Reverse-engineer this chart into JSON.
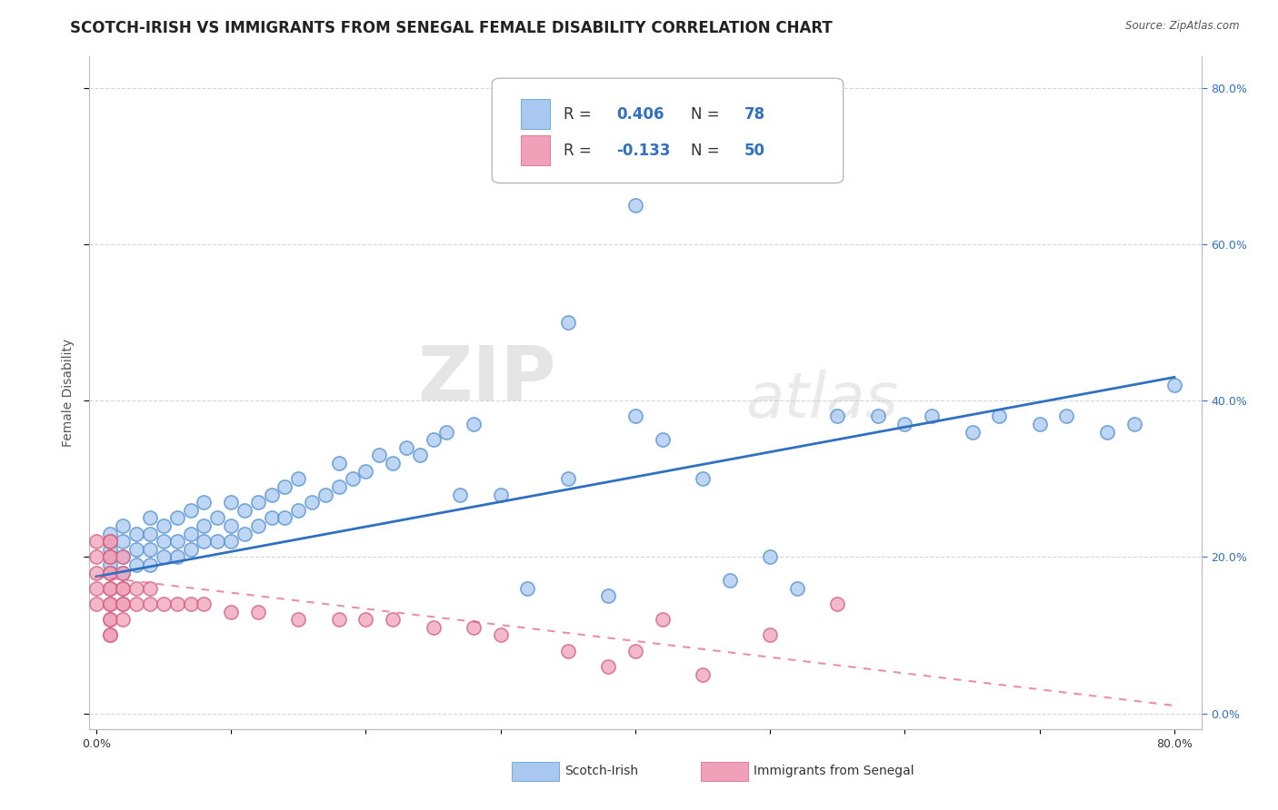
{
  "title": "SCOTCH-IRISH VS IMMIGRANTS FROM SENEGAL FEMALE DISABILITY CORRELATION CHART",
  "source": "Source: ZipAtlas.com",
  "ylabel": "Female Disability",
  "xlim": [
    -0.005,
    0.82
  ],
  "ylim": [
    -0.02,
    0.84
  ],
  "xtick_vals": [
    0.0,
    0.1,
    0.2,
    0.3,
    0.4,
    0.5,
    0.6,
    0.7,
    0.8
  ],
  "xtick_labels": [
    "0.0%",
    "",
    "",
    "",
    "",
    "",
    "",
    "",
    "80.0%"
  ],
  "ytick_vals": [
    0.0,
    0.2,
    0.4,
    0.6,
    0.8
  ],
  "ytick_labels": [
    "0.0%",
    "20.0%",
    "40.0%",
    "60.0%",
    "80.0%"
  ],
  "color_blue": "#A8C8F0",
  "color_pink": "#F0A0B8",
  "color_blue_line": "#3070C0",
  "color_pink_line": "#E06080",
  "color_blue_scatter_edge": "#5090D0",
  "color_pink_scatter_edge": "#D06080",
  "watermark_zip": "ZIP",
  "watermark_atlas": "atlas",
  "scotch_irish_x": [
    0.01,
    0.01,
    0.01,
    0.02,
    0.02,
    0.02,
    0.02,
    0.03,
    0.03,
    0.03,
    0.04,
    0.04,
    0.04,
    0.04,
    0.05,
    0.05,
    0.05,
    0.06,
    0.06,
    0.06,
    0.07,
    0.07,
    0.07,
    0.08,
    0.08,
    0.08,
    0.09,
    0.09,
    0.1,
    0.1,
    0.1,
    0.11,
    0.11,
    0.12,
    0.12,
    0.13,
    0.13,
    0.14,
    0.14,
    0.15,
    0.15,
    0.16,
    0.17,
    0.18,
    0.18,
    0.19,
    0.2,
    0.21,
    0.22,
    0.23,
    0.24,
    0.25,
    0.26,
    0.27,
    0.28,
    0.3,
    0.32,
    0.35,
    0.38,
    0.4,
    0.42,
    0.45,
    0.47,
    0.5,
    0.52,
    0.55,
    0.58,
    0.6,
    0.62,
    0.65,
    0.67,
    0.7,
    0.72,
    0.75,
    0.77,
    0.8,
    0.35,
    0.4
  ],
  "scotch_irish_y": [
    0.19,
    0.21,
    0.23,
    0.18,
    0.2,
    0.22,
    0.24,
    0.19,
    0.21,
    0.23,
    0.19,
    0.21,
    0.23,
    0.25,
    0.2,
    0.22,
    0.24,
    0.2,
    0.22,
    0.25,
    0.21,
    0.23,
    0.26,
    0.22,
    0.24,
    0.27,
    0.22,
    0.25,
    0.22,
    0.24,
    0.27,
    0.23,
    0.26,
    0.24,
    0.27,
    0.25,
    0.28,
    0.25,
    0.29,
    0.26,
    0.3,
    0.27,
    0.28,
    0.29,
    0.32,
    0.3,
    0.31,
    0.33,
    0.32,
    0.34,
    0.33,
    0.35,
    0.36,
    0.28,
    0.37,
    0.28,
    0.16,
    0.3,
    0.15,
    0.38,
    0.35,
    0.3,
    0.17,
    0.2,
    0.16,
    0.38,
    0.38,
    0.37,
    0.38,
    0.36,
    0.38,
    0.37,
    0.38,
    0.36,
    0.37,
    0.42,
    0.5,
    0.65
  ],
  "senegal_x": [
    0.0,
    0.0,
    0.0,
    0.0,
    0.0,
    0.01,
    0.01,
    0.01,
    0.01,
    0.01,
    0.01,
    0.01,
    0.01,
    0.01,
    0.01,
    0.01,
    0.01,
    0.01,
    0.01,
    0.02,
    0.02,
    0.02,
    0.02,
    0.02,
    0.02,
    0.02,
    0.03,
    0.03,
    0.04,
    0.04,
    0.05,
    0.06,
    0.07,
    0.08,
    0.1,
    0.12,
    0.15,
    0.18,
    0.2,
    0.22,
    0.25,
    0.28,
    0.3,
    0.35,
    0.38,
    0.4,
    0.42,
    0.45,
    0.5,
    0.55
  ],
  "senegal_y": [
    0.14,
    0.16,
    0.18,
    0.2,
    0.22,
    0.1,
    0.12,
    0.14,
    0.16,
    0.18,
    0.2,
    0.22,
    0.1,
    0.12,
    0.14,
    0.16,
    0.18,
    0.2,
    0.22,
    0.12,
    0.14,
    0.16,
    0.18,
    0.2,
    0.14,
    0.16,
    0.14,
    0.16,
    0.14,
    0.16,
    0.14,
    0.14,
    0.14,
    0.14,
    0.13,
    0.13,
    0.12,
    0.12,
    0.12,
    0.12,
    0.11,
    0.11,
    0.1,
    0.08,
    0.06,
    0.08,
    0.12,
    0.05,
    0.1,
    0.14
  ],
  "grid_color": "#CCCCCC",
  "background_color": "#FFFFFF",
  "title_fontsize": 12,
  "axis_label_fontsize": 10,
  "tick_fontsize": 9,
  "legend_R1": "0.406",
  "legend_N1": "78",
  "legend_R2": "-0.133",
  "legend_N2": "50"
}
